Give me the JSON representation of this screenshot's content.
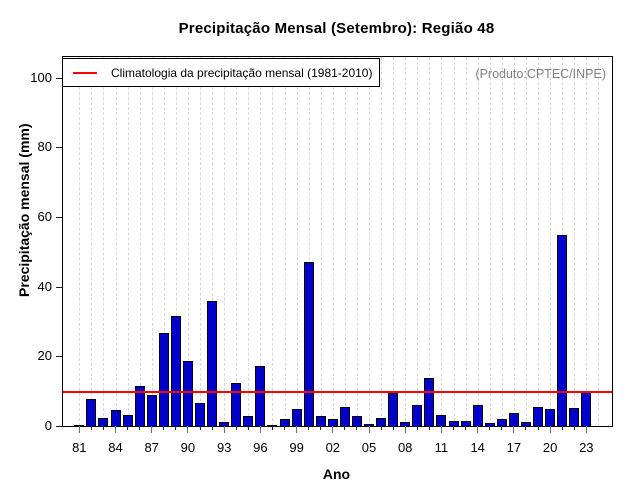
{
  "chart_data": {
    "type": "bar",
    "title": "Precipitação Mensal (Setembro): Região 48",
    "xlabel": "Ano",
    "ylabel": "Precipitação mensal (mm)",
    "annotation": "(Produto:CPTEC/INPE)",
    "legend": {
      "label": "Climatologia da precipitação mensal (1981-2010)",
      "line_color": "#ff0000"
    },
    "years": [
      1981,
      1982,
      1983,
      1984,
      1985,
      1986,
      1987,
      1988,
      1989,
      1990,
      1991,
      1992,
      1993,
      1994,
      1995,
      1996,
      1997,
      1998,
      1999,
      2000,
      2001,
      2002,
      2003,
      2004,
      2005,
      2006,
      2007,
      2008,
      2009,
      2010,
      2011,
      2012,
      2013,
      2014,
      2015,
      2016,
      2017,
      2018,
      2019,
      2020,
      2021,
      2022,
      2023
    ],
    "values": [
      0.2,
      7.7,
      2.3,
      4.5,
      3.3,
      11.4,
      8.8,
      26.7,
      31.5,
      18.6,
      6.7,
      35.9,
      1.2,
      12.3,
      3.0,
      17.2,
      0.4,
      2.0,
      5.0,
      47.1,
      2.9,
      1.9,
      5.5,
      2.9,
      0.6,
      2.3,
      9.5,
      1.1,
      6.0,
      13.7,
      3.2,
      1.4,
      1.4,
      6.0,
      0.8,
      1.9,
      3.7,
      1.1,
      5.5,
      5.0,
      54.7,
      5.2,
      10.1
    ],
    "climatology_value": 9.8,
    "ylim": [
      0,
      106
    ],
    "yticks": [
      0,
      20,
      40,
      60,
      80,
      100
    ],
    "xtick_labels": [
      "81",
      "84",
      "87",
      "90",
      "93",
      "96",
      "99",
      "02",
      "05",
      "08",
      "11",
      "14",
      "17",
      "20",
      "23"
    ],
    "xtick_years": [
      1981,
      1984,
      1987,
      1990,
      1993,
      1996,
      1999,
      2002,
      2005,
      2008,
      2011,
      2014,
      2017,
      2020,
      2023
    ],
    "grid": "vertical-dashed",
    "legend_position": "top-left",
    "bar_color": "#0000CD",
    "bar_border_color": "#000000",
    "grid_color": "#d8d8d8"
  }
}
